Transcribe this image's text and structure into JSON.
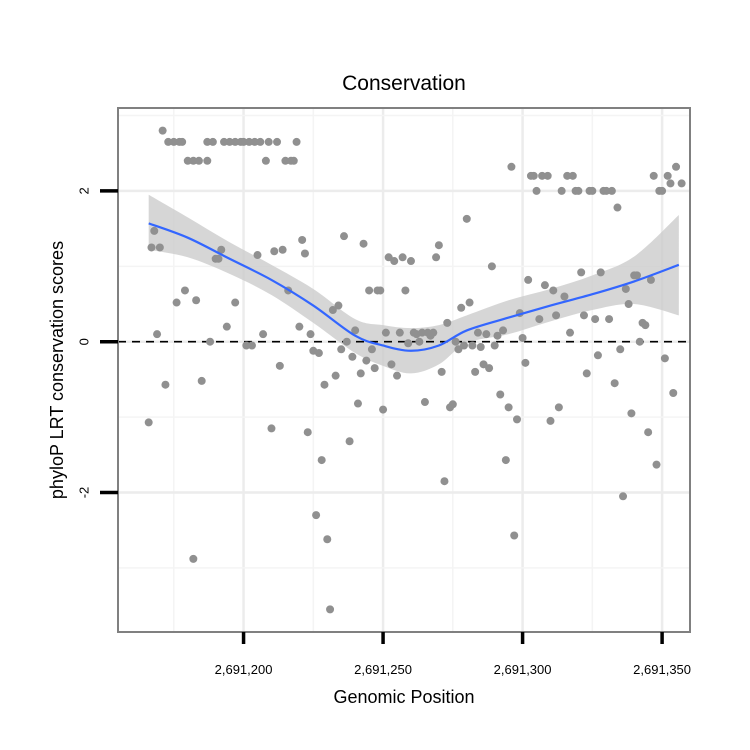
{
  "chart_data": {
    "type": "scatter",
    "title": "Conservation",
    "xlabel": "Genomic Position",
    "ylabel": "phyloP LRT conservation scores",
    "xlim": [
      2691155,
      2691360
    ],
    "ylim": [
      -3.85,
      3.1
    ],
    "x_ticks": [
      2691200,
      2691250,
      2691300,
      2691350
    ],
    "x_tick_labels": [
      "2,691,200",
      "2,691,250",
      "2,691,300",
      "2,691,350"
    ],
    "y_ticks": [
      -2,
      0,
      2
    ],
    "y_tick_labels": [
      "-2",
      "0",
      "2"
    ],
    "x_minor_gridlines": [
      2691175,
      2691225,
      2691275,
      2691325
    ],
    "y_minor_gridlines": [
      -3,
      -1,
      1,
      3
    ],
    "reference_line": {
      "y": 0,
      "style": "dashed",
      "color": "#000000"
    },
    "series": [
      {
        "name": "scores",
        "kind": "points",
        "color": "#909090",
        "points": [
          [
            2691166,
            -1.07
          ],
          [
            2691167,
            1.25
          ],
          [
            2691168,
            1.47
          ],
          [
            2691169,
            0.1
          ],
          [
            2691170,
            1.25
          ],
          [
            2691171,
            2.8
          ],
          [
            2691172,
            -0.57
          ],
          [
            2691173,
            2.65
          ],
          [
            2691175,
            2.65
          ],
          [
            2691176,
            0.52
          ],
          [
            2691177,
            2.65
          ],
          [
            2691178,
            2.65
          ],
          [
            2691179,
            0.68
          ],
          [
            2691180,
            2.4
          ],
          [
            2691182,
            2.4
          ],
          [
            2691182,
            -2.88
          ],
          [
            2691183,
            0.55
          ],
          [
            2691184,
            2.4
          ],
          [
            2691185,
            -0.52
          ],
          [
            2691187,
            2.4
          ],
          [
            2691187,
            2.65
          ],
          [
            2691188,
            0.0
          ],
          [
            2691189,
            2.65
          ],
          [
            2691190,
            1.1
          ],
          [
            2691191,
            1.1
          ],
          [
            2691192,
            1.22
          ],
          [
            2691193,
            2.65
          ],
          [
            2691194,
            0.2
          ],
          [
            2691195,
            2.65
          ],
          [
            2691197,
            2.65
          ],
          [
            2691197,
            0.52
          ],
          [
            2691199,
            2.65
          ],
          [
            2691200,
            2.65
          ],
          [
            2691201,
            -0.05
          ],
          [
            2691202,
            2.65
          ],
          [
            2691203,
            -0.05
          ],
          [
            2691204,
            2.65
          ],
          [
            2691205,
            1.15
          ],
          [
            2691206,
            2.65
          ],
          [
            2691207,
            0.1
          ],
          [
            2691208,
            2.4
          ],
          [
            2691209,
            2.65
          ],
          [
            2691210,
            -1.15
          ],
          [
            2691211,
            1.2
          ],
          [
            2691212,
            2.65
          ],
          [
            2691213,
            -0.32
          ],
          [
            2691214,
            1.22
          ],
          [
            2691215,
            2.4
          ],
          [
            2691216,
            0.68
          ],
          [
            2691217,
            2.4
          ],
          [
            2691218,
            2.4
          ],
          [
            2691219,
            2.65
          ],
          [
            2691220,
            0.2
          ],
          [
            2691221,
            1.35
          ],
          [
            2691222,
            1.17
          ],
          [
            2691223,
            -1.2
          ],
          [
            2691224,
            0.1
          ],
          [
            2691225,
            -0.12
          ],
          [
            2691226,
            -2.3
          ],
          [
            2691227,
            -0.15
          ],
          [
            2691228,
            -1.57
          ],
          [
            2691229,
            -0.57
          ],
          [
            2691230,
            -2.62
          ],
          [
            2691231,
            -3.55
          ],
          [
            2691232,
            0.42
          ],
          [
            2691233,
            -0.45
          ],
          [
            2691234,
            0.48
          ],
          [
            2691235,
            -0.1
          ],
          [
            2691236,
            1.4
          ],
          [
            2691237,
            0.0
          ],
          [
            2691238,
            -1.32
          ],
          [
            2691239,
            -0.2
          ],
          [
            2691240,
            0.15
          ],
          [
            2691241,
            -0.82
          ],
          [
            2691242,
            -0.42
          ],
          [
            2691243,
            1.3
          ],
          [
            2691244,
            -0.25
          ],
          [
            2691245,
            0.68
          ],
          [
            2691246,
            -0.1
          ],
          [
            2691247,
            -0.35
          ],
          [
            2691248,
            0.68
          ],
          [
            2691249,
            0.68
          ],
          [
            2691250,
            -0.9
          ],
          [
            2691251,
            0.12
          ],
          [
            2691252,
            1.12
          ],
          [
            2691253,
            -0.3
          ],
          [
            2691254,
            1.07
          ],
          [
            2691255,
            -0.45
          ],
          [
            2691256,
            0.12
          ],
          [
            2691257,
            1.12
          ],
          [
            2691258,
            0.68
          ],
          [
            2691259,
            -0.02
          ],
          [
            2691260,
            1.07
          ],
          [
            2691261,
            0.12
          ],
          [
            2691262,
            0.1
          ],
          [
            2691263,
            0.0
          ],
          [
            2691264,
            0.12
          ],
          [
            2691265,
            -0.8
          ],
          [
            2691266,
            0.12
          ],
          [
            2691267,
            0.08
          ],
          [
            2691268,
            0.12
          ],
          [
            2691269,
            1.12
          ],
          [
            2691270,
            1.28
          ],
          [
            2691271,
            -0.4
          ],
          [
            2691272,
            -1.85
          ],
          [
            2691273,
            0.25
          ],
          [
            2691274,
            -0.87
          ],
          [
            2691275,
            -0.83
          ],
          [
            2691276,
            0.0
          ],
          [
            2691277,
            -0.1
          ],
          [
            2691278,
            0.45
          ],
          [
            2691279,
            -0.05
          ],
          [
            2691280,
            1.63
          ],
          [
            2691281,
            0.52
          ],
          [
            2691282,
            -0.05
          ],
          [
            2691283,
            -0.4
          ],
          [
            2691284,
            0.12
          ],
          [
            2691285,
            -0.07
          ],
          [
            2691286,
            -0.3
          ],
          [
            2691287,
            0.1
          ],
          [
            2691288,
            -0.35
          ],
          [
            2691289,
            1.0
          ],
          [
            2691290,
            -0.05
          ],
          [
            2691291,
            0.08
          ],
          [
            2691292,
            -0.7
          ],
          [
            2691293,
            0.15
          ],
          [
            2691294,
            -1.57
          ],
          [
            2691295,
            -0.87
          ],
          [
            2691296,
            2.32
          ],
          [
            2691297,
            -2.57
          ],
          [
            2691298,
            -1.03
          ],
          [
            2691299,
            0.38
          ],
          [
            2691300,
            0.05
          ],
          [
            2691301,
            -0.28
          ],
          [
            2691302,
            0.82
          ],
          [
            2691303,
            2.2
          ],
          [
            2691304,
            2.2
          ],
          [
            2691305,
            2.0
          ],
          [
            2691306,
            0.3
          ],
          [
            2691307,
            2.2
          ],
          [
            2691308,
            0.75
          ],
          [
            2691309,
            2.2
          ],
          [
            2691310,
            -1.05
          ],
          [
            2691311,
            0.68
          ],
          [
            2691312,
            0.35
          ],
          [
            2691313,
            -0.87
          ],
          [
            2691314,
            2.0
          ],
          [
            2691315,
            0.6
          ],
          [
            2691316,
            2.2
          ],
          [
            2691317,
            0.12
          ],
          [
            2691318,
            2.2
          ],
          [
            2691319,
            2.0
          ],
          [
            2691320,
            2.0
          ],
          [
            2691321,
            0.92
          ],
          [
            2691322,
            0.35
          ],
          [
            2691323,
            -0.42
          ],
          [
            2691324,
            2.0
          ],
          [
            2691325,
            2.0
          ],
          [
            2691326,
            0.3
          ],
          [
            2691327,
            -0.18
          ],
          [
            2691328,
            0.92
          ],
          [
            2691329,
            2.0
          ],
          [
            2691330,
            2.0
          ],
          [
            2691331,
            0.3
          ],
          [
            2691332,
            2.0
          ],
          [
            2691333,
            -0.55
          ],
          [
            2691334,
            1.78
          ],
          [
            2691335,
            -0.1
          ],
          [
            2691336,
            -2.05
          ],
          [
            2691337,
            0.7
          ],
          [
            2691338,
            0.5
          ],
          [
            2691339,
            -0.95
          ],
          [
            2691340,
            0.88
          ],
          [
            2691341,
            0.88
          ],
          [
            2691342,
            0.0
          ],
          [
            2691343,
            0.25
          ],
          [
            2691344,
            0.22
          ],
          [
            2691345,
            -1.2
          ],
          [
            2691346,
            0.82
          ],
          [
            2691347,
            2.2
          ],
          [
            2691348,
            -1.63
          ],
          [
            2691349,
            2.0
          ],
          [
            2691350,
            2.0
          ],
          [
            2691351,
            -0.22
          ],
          [
            2691352,
            2.2
          ],
          [
            2691353,
            2.1
          ],
          [
            2691354,
            -0.68
          ],
          [
            2691355,
            2.32
          ],
          [
            2691357,
            2.1
          ]
        ]
      },
      {
        "name": "loess fit",
        "kind": "smooth",
        "color": "#3366ff",
        "band_color": "#cccccc",
        "x": [
          2691166,
          2691180,
          2691195,
          2691210,
          2691225,
          2691240,
          2691250,
          2691260,
          2691270,
          2691280,
          2691295,
          2691310,
          2691325,
          2691340,
          2691356
        ],
        "y": [
          1.57,
          1.38,
          1.1,
          0.82,
          0.48,
          0.08,
          -0.05,
          -0.12,
          -0.05,
          0.15,
          0.32,
          0.48,
          0.63,
          0.8,
          1.02
        ],
        "lower": [
          1.22,
          1.12,
          0.9,
          0.62,
          0.25,
          -0.15,
          -0.32,
          -0.42,
          -0.3,
          -0.02,
          0.1,
          0.27,
          0.42,
          0.5,
          0.35
        ],
        "upper": [
          1.95,
          1.65,
          1.32,
          1.02,
          0.7,
          0.3,
          0.22,
          0.18,
          0.22,
          0.35,
          0.55,
          0.7,
          0.88,
          1.13,
          1.68
        ]
      }
    ],
    "grid": true
  }
}
